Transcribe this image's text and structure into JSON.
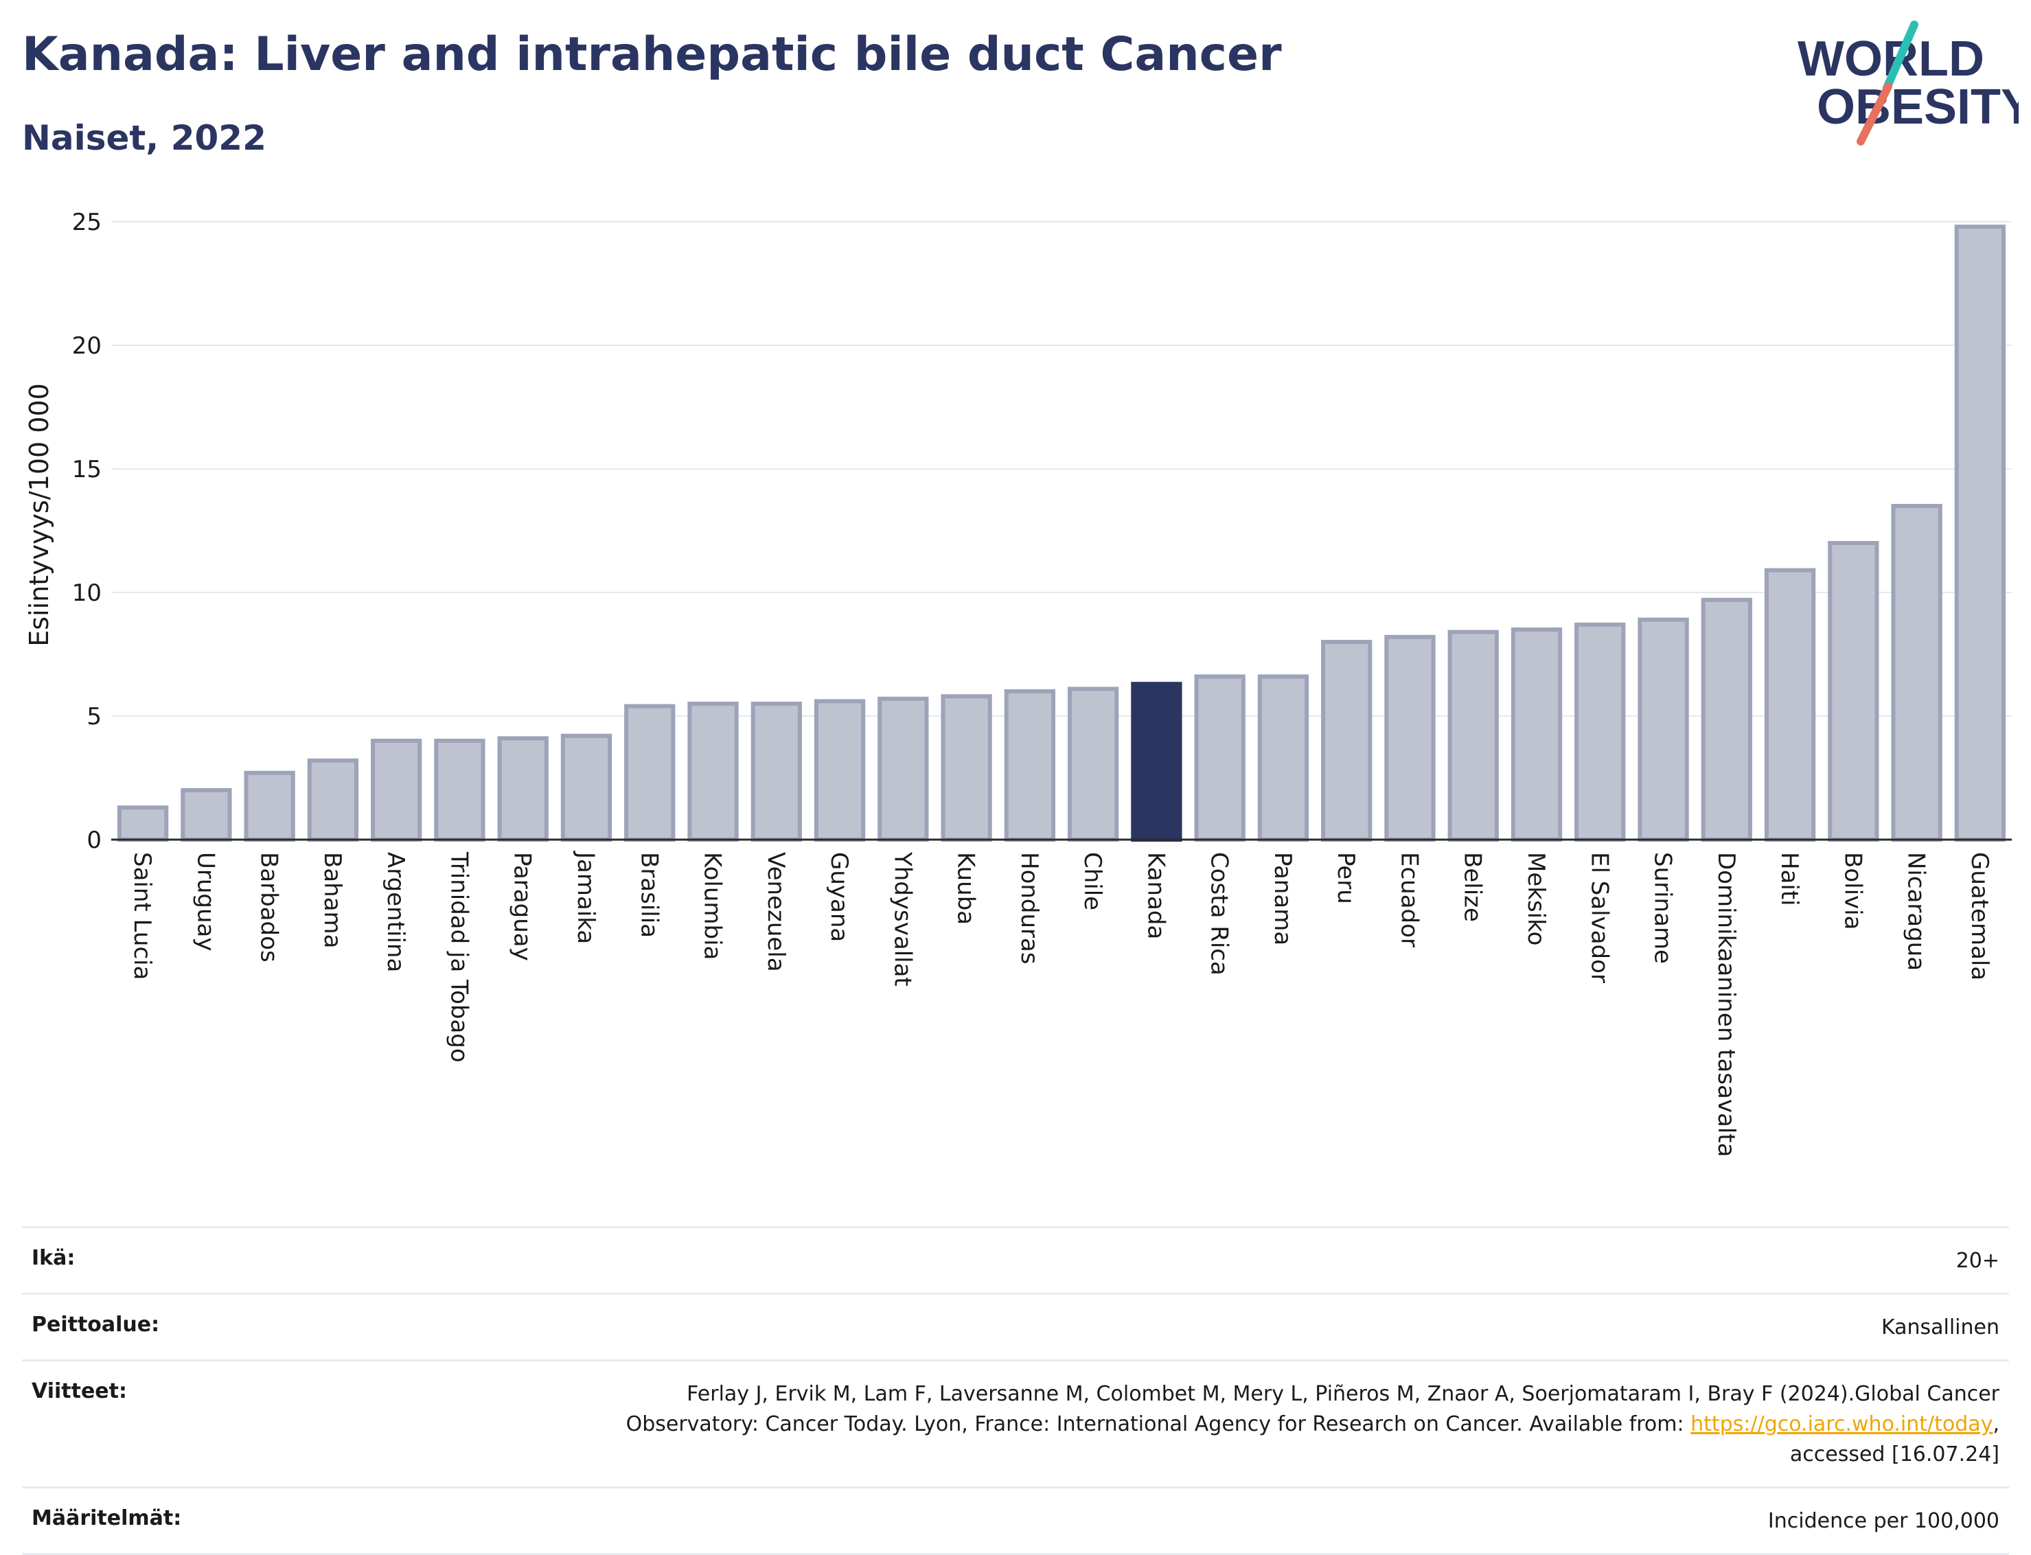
{
  "header": {
    "title": "Kanada: Liver and intrahepatic bile duct Cancer",
    "subtitle": "Naiset, 2022"
  },
  "logo": {
    "line1": "WORLD",
    "line2": "OBESITY",
    "icon": "world-obesity-logo"
  },
  "chart_data": {
    "type": "bar",
    "ylabel": "Esiintyvyys/100 000",
    "xlabel": "",
    "ylim": [
      0,
      25
    ],
    "yticks": [
      0,
      5,
      10,
      15,
      20,
      25
    ],
    "grid": true,
    "highlight": "Kanada",
    "colors": {
      "bar": "#bfc3d0",
      "bar_edge": "#9da3b8",
      "highlight": "#2b3561"
    },
    "categories": [
      "Saint Lucia",
      "Uruguay",
      "Barbados",
      "Bahama",
      "Argentiina",
      "Trinidad ja Tobago",
      "Paraguay",
      "Jamaika",
      "Brasilia",
      "Kolumbia",
      "Venezuela",
      "Guyana",
      "Yhdysvallat",
      "Kuuba",
      "Honduras",
      "Chile",
      "Kanada",
      "Costa Rica",
      "Panama",
      "Peru",
      "Ecuador",
      "Belize",
      "Meksiko",
      "El Salvador",
      "Suriname",
      "Dominikaaninen tasavalta",
      "Haiti",
      "Bolivia",
      "Nicaragua",
      "Guatemala"
    ],
    "values": [
      1.3,
      2.0,
      2.7,
      3.2,
      4.0,
      4.0,
      4.1,
      4.2,
      5.4,
      5.5,
      5.5,
      5.6,
      5.7,
      5.8,
      6.0,
      6.1,
      6.3,
      6.6,
      6.6,
      8.0,
      8.2,
      8.4,
      8.5,
      8.7,
      8.9,
      9.7,
      10.9,
      12.0,
      13.5,
      24.8
    ]
  },
  "info": {
    "age_label": "Ikä:",
    "age_value": "20+",
    "coverage_label": "Peittoalue:",
    "coverage_value": "Kansallinen",
    "refs_label": "Viitteet:",
    "refs_text_1": "Ferlay J, Ervik M, Lam F, Laversanne M, Colombet M, Mery L, Piñeros M, Znaor A, Soerjomataram I, Bray F (2024).Global Cancer",
    "refs_text_2": "Observatory: Cancer Today. Lyon, France: International Agency for Research on Cancer. Available from: ",
    "refs_link": "https://gco.iarc.who.int/today",
    "refs_text_3": ",",
    "refs_text_4": "accessed [16.07.24]",
    "defs_label": "Määritelmät:",
    "defs_value": "Incidence per 100,000"
  }
}
